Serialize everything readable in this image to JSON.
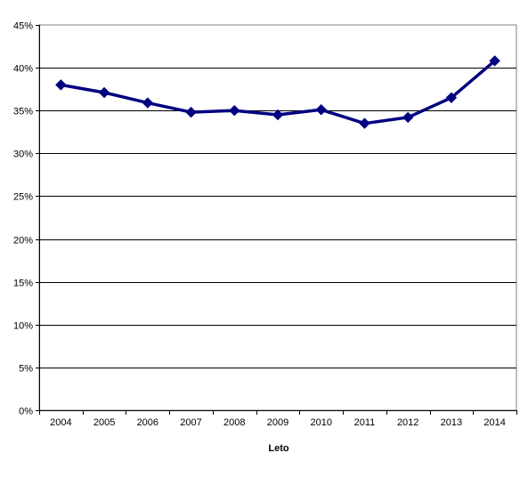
{
  "chart_data": {
    "type": "line",
    "title": "",
    "xlabel": "Leto",
    "ylabel": "",
    "categories": [
      "2004",
      "2005",
      "2006",
      "2007",
      "2008",
      "2009",
      "2010",
      "2011",
      "2012",
      "2013",
      "2014"
    ],
    "series": [
      {
        "values": [
          38.0,
          37.1,
          35.9,
          34.8,
          35.0,
          34.5,
          35.1,
          33.5,
          34.2,
          36.5,
          40.8
        ],
        "color": "#000080",
        "marker": "diamond"
      }
    ],
    "yticks": [
      "0%",
      "5%",
      "10%",
      "15%",
      "20%",
      "25%",
      "30%",
      "35%",
      "40%",
      "45%"
    ],
    "ylim": [
      0,
      45
    ],
    "ystep": 5,
    "grid": "horizontal",
    "legend": "none"
  }
}
